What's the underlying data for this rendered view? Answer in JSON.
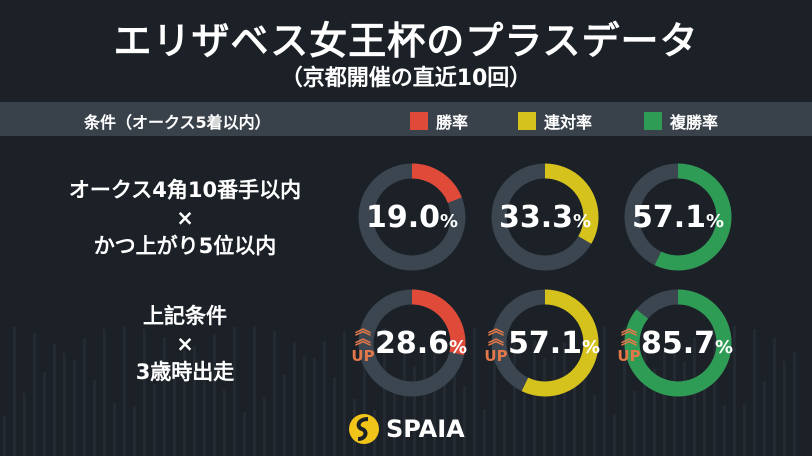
{
  "title": "エリザベス女王杯のプラスデータ",
  "subtitle": "（京都開催の直近10回）",
  "header": {
    "condition": "条件（オークス5着以内）",
    "legend": [
      {
        "label": "勝率",
        "color": "#e04a38"
      },
      {
        "label": "連対率",
        "color": "#d6c21c"
      },
      {
        "label": "複勝率",
        "color": "#2f9c55"
      }
    ]
  },
  "rows": [
    {
      "label_lines": [
        "オークス4角10番手以内",
        "×",
        "かつ上がり5位以内"
      ],
      "up": false,
      "values": [
        {
          "num": "19.0",
          "pct": "%",
          "value": 19.0
        },
        {
          "num": "33.3",
          "pct": "%",
          "value": 33.3
        },
        {
          "num": "57.1",
          "pct": "%",
          "value": 57.1
        }
      ]
    },
    {
      "label_lines": [
        "上記条件",
        "×",
        "3歳時出走"
      ],
      "up": true,
      "up_label": "UP",
      "values": [
        {
          "num": "28.6",
          "pct": "%",
          "value": 28.6
        },
        {
          "num": "57.1",
          "pct": "%",
          "value": 57.1
        },
        {
          "num": "85.7",
          "pct": "%",
          "value": 85.7
        }
      ]
    }
  ],
  "logo": "SPAIA",
  "track_color": "#3b4650"
}
